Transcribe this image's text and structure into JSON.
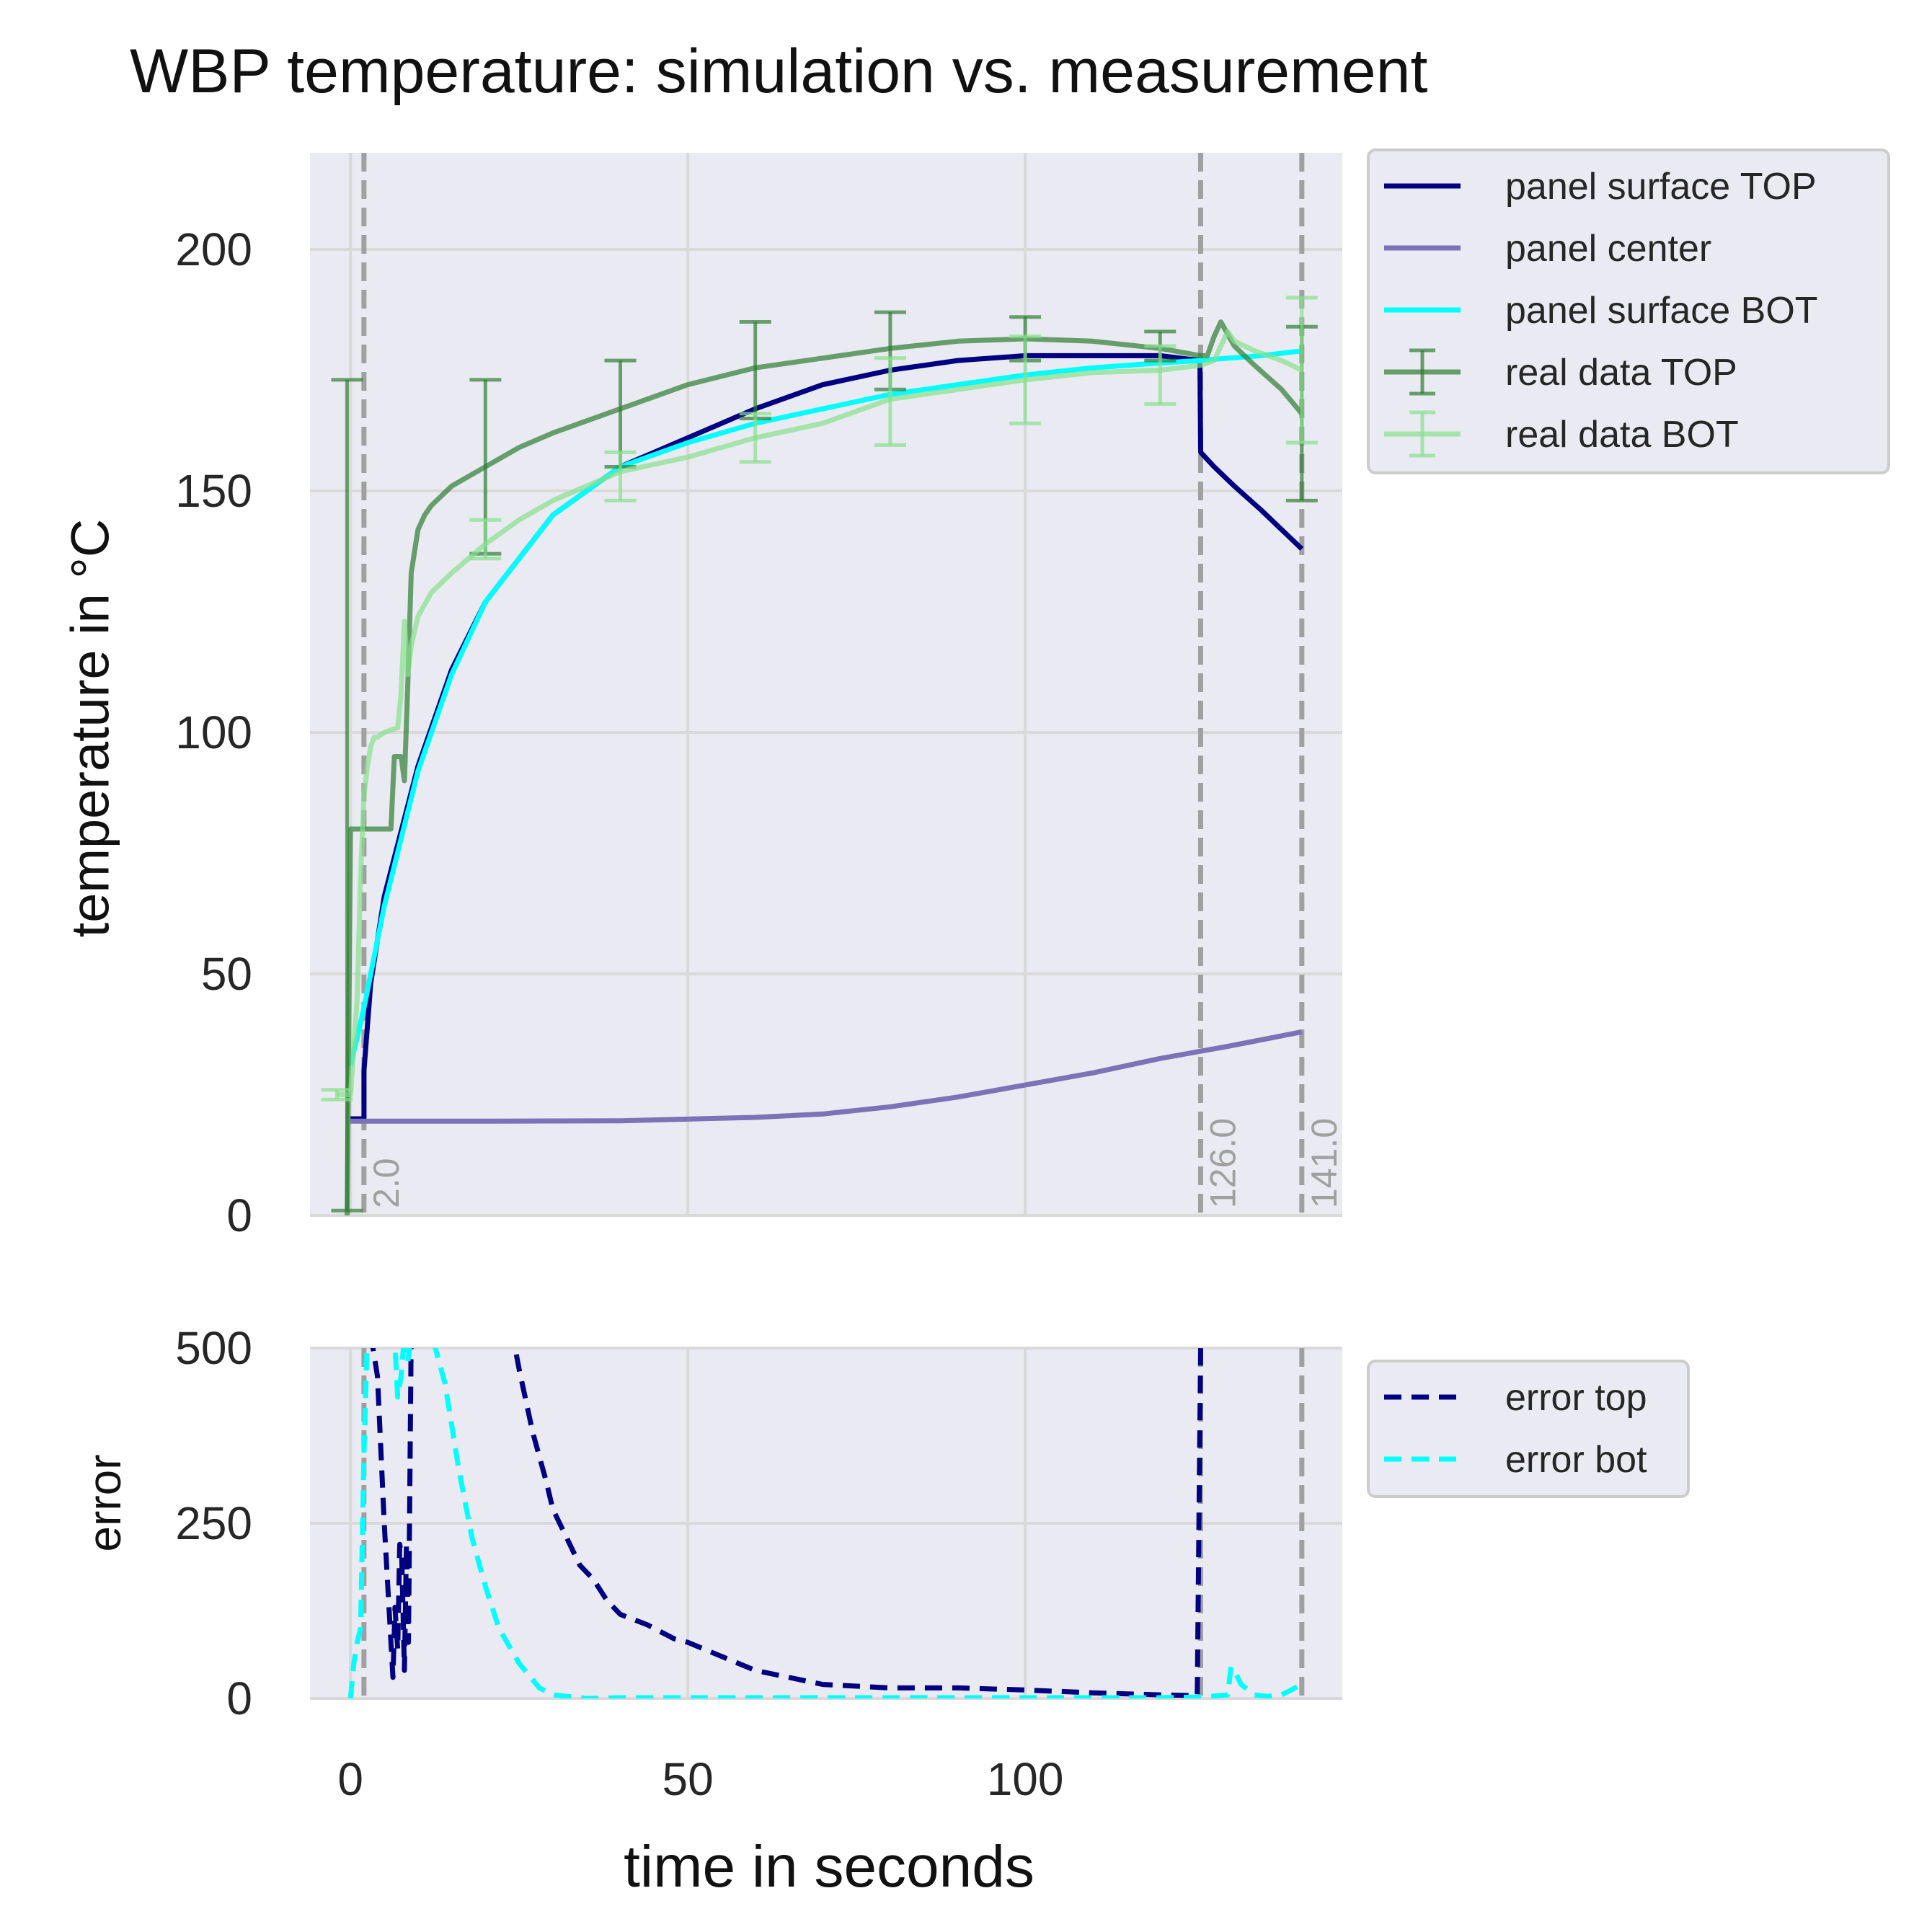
{
  "chart_data": [
    {
      "type": "line",
      "title": "WBP temperature: simulation vs. measurement",
      "xlabel": "",
      "ylabel": "temperature in °C",
      "xlim": [
        -6,
        147
      ],
      "ylim": [
        0,
        220
      ],
      "yticks": [
        0,
        50,
        100,
        150,
        200
      ],
      "xticks": [
        0,
        50,
        100
      ],
      "grid": true,
      "legend_position": "outside-top-right",
      "vlines": [
        {
          "x": 2.0,
          "label": "2.0"
        },
        {
          "x": 126.0,
          "label": "126.0"
        },
        {
          "x": 141.0,
          "label": "141.0"
        }
      ],
      "series": [
        {
          "name": "panel surface TOP",
          "color": "#000080",
          "style": "solid",
          "x": [
            0,
            2,
            2,
            3,
            5,
            10,
            15,
            20,
            30,
            40,
            50,
            60,
            70,
            80,
            90,
            100,
            110,
            120,
            125.9,
            126,
            128,
            131,
            135,
            141
          ],
          "y": [
            20,
            20,
            30,
            48,
            66,
            93,
            113,
            127,
            145,
            155,
            161,
            167,
            172,
            175,
            177,
            178,
            178,
            178,
            177,
            158,
            155,
            151,
            146,
            138
          ]
        },
        {
          "name": "panel center",
          "color": "#7b72b8",
          "style": "solid",
          "x": [
            0,
            20,
            40,
            60,
            70,
            80,
            90,
            100,
            110,
            120,
            126,
            130,
            141
          ],
          "y": [
            19.5,
            19.5,
            19.6,
            20.3,
            21,
            22.5,
            24.5,
            27,
            29.5,
            32.5,
            34,
            35,
            38
          ]
        },
        {
          "name": "panel surface BOT",
          "color": "#00ffff",
          "style": "solid",
          "x": [
            0,
            2,
            5,
            10,
            15,
            20,
            30,
            40,
            50,
            60,
            70,
            80,
            90,
            100,
            110,
            120,
            126,
            130,
            135,
            141
          ],
          "y": [
            31,
            43,
            64,
            92,
            112,
            127,
            145,
            155,
            160,
            164,
            167,
            170,
            172,
            174,
            175.5,
            176.5,
            177,
            177.5,
            178,
            179
          ]
        },
        {
          "name": "real data TOP",
          "color": "#2e7d32",
          "style": "solid",
          "opacity": 0.7,
          "x": [
            -0.5,
            0,
            1,
            6,
            6.5,
            7.5,
            8,
            8.5,
            9,
            10,
            11,
            12,
            15,
            20,
            25,
            30,
            40,
            50,
            60,
            70,
            80,
            90,
            100,
            110,
            120,
            126,
            127,
            128,
            129,
            131,
            134,
            138,
            141
          ],
          "y": [
            0,
            80,
            80,
            80,
            95,
            95,
            90,
            110,
            133,
            142,
            145,
            147,
            151,
            155,
            159,
            162,
            167,
            172,
            175.5,
            177.5,
            179.5,
            181,
            181.5,
            181,
            179.5,
            178,
            178,
            182,
            185,
            180,
            176,
            171,
            166
          ],
          "errorbars": [
            {
              "x": -0.5,
              "y": 87,
              "err": 86
            },
            {
              "x": 20,
              "y": 155,
              "err": 18
            },
            {
              "x": 40,
              "y": 166,
              "err": 11
            },
            {
              "x": 60,
              "y": 175,
              "err": 10
            },
            {
              "x": 80,
              "y": 179,
              "err": 8
            },
            {
              "x": 100,
              "y": 181.5,
              "err": 4.5
            },
            {
              "x": 120,
              "y": 180,
              "err": 3
            },
            {
              "x": 141,
              "y": 166,
              "err": 18
            }
          ]
        },
        {
          "name": "real data BOT",
          "color": "#86e08c",
          "style": "solid",
          "opacity": 0.7,
          "x": [
            -2,
            0,
            1,
            1.5,
            2,
            2.5,
            3,
            3.5,
            4,
            5,
            6,
            7,
            7.5,
            8,
            8.5,
            9,
            10,
            12,
            15,
            20,
            25,
            30,
            40,
            50,
            60,
            70,
            80,
            90,
            100,
            110,
            120,
            126,
            128,
            130,
            131,
            134,
            138,
            141
          ],
          "y": [
            25,
            25,
            45,
            70,
            87,
            93,
            97,
            99,
            99,
            100,
            100.5,
            101,
            108,
            123,
            112,
            118,
            124,
            129,
            133,
            139,
            144,
            148,
            154,
            157,
            161,
            164,
            169,
            171,
            173,
            174.5,
            175,
            176,
            177,
            183,
            181,
            179,
            177,
            175
          ],
          "errorbars": [
            {
              "x": -2,
              "y": 25,
              "err": 1
            },
            {
              "x": 20,
              "y": 140,
              "err": 4
            },
            {
              "x": 40,
              "y": 153,
              "err": 5
            },
            {
              "x": 60,
              "y": 161,
              "err": 5
            },
            {
              "x": 80,
              "y": 168.5,
              "err": 9
            },
            {
              "x": 100,
              "y": 173,
              "err": 9
            },
            {
              "x": 120,
              "y": 174,
              "err": 6
            },
            {
              "x": 141,
              "y": 175,
              "err": 15
            }
          ]
        }
      ]
    },
    {
      "type": "line",
      "title": "",
      "xlabel": "time in seconds",
      "ylabel": "error",
      "xlim": [
        -6,
        147
      ],
      "ylim": [
        0,
        500
      ],
      "yticks": [
        0,
        250,
        500
      ],
      "xticks": [
        0,
        50,
        100
      ],
      "grid": true,
      "legend_position": "outside-top-right",
      "series": [
        {
          "name": "error top",
          "color": "#000080",
          "style": "dashed",
          "x": [
            3,
            4,
            5,
            6,
            6.3,
            6.6,
            7,
            7.3,
            7.6,
            8,
            8.3,
            8.6,
            9,
            9.3,
            24,
            25,
            27,
            29,
            30,
            32,
            34,
            36,
            38,
            40,
            44,
            48,
            50,
            55,
            60,
            70,
            80,
            90,
            100,
            110,
            120,
            125.5,
            126,
            126.05
          ],
          "y": [
            520,
            460,
            250,
            80,
            30,
            130,
            70,
            220,
            200,
            40,
            220,
            80,
            520,
            520,
            520,
            470,
            380,
            310,
            270,
            230,
            190,
            170,
            140,
            120,
            105,
            85,
            80,
            60,
            40,
            20,
            15,
            15,
            12,
            8,
            5,
            4,
            500,
            520
          ]
        },
        {
          "name": "error bot",
          "color": "#00ffff",
          "style": "dashed",
          "x": [
            0,
            0.5,
            1,
            1.5,
            2,
            2.5,
            3,
            6.5,
            7,
            7.5,
            8,
            8.5,
            9,
            9.5,
            10,
            12,
            14,
            16,
            18,
            20,
            22,
            25,
            28,
            30,
            35,
            40,
            60,
            80,
            100,
            120,
            126,
            130,
            130.5,
            131,
            132,
            134,
            136,
            138,
            140,
            141
          ],
          "y": [
            0,
            50,
            80,
            100,
            350,
            520,
            520,
            520,
            430,
            460,
            520,
            480,
            520,
            520,
            520,
            520,
            450,
            330,
            230,
            160,
            100,
            50,
            15,
            5,
            0,
            1,
            1,
            1,
            1,
            1,
            2,
            5,
            45,
            40,
            20,
            5,
            3,
            5,
            15,
            20
          ]
        }
      ]
    }
  ],
  "vline_color": "#a0a0a0",
  "legends": {
    "main": [
      "panel surface TOP",
      "panel center",
      "panel surface BOT",
      "real data TOP",
      "real data BOT"
    ],
    "error": [
      "error top",
      "error bot"
    ]
  }
}
